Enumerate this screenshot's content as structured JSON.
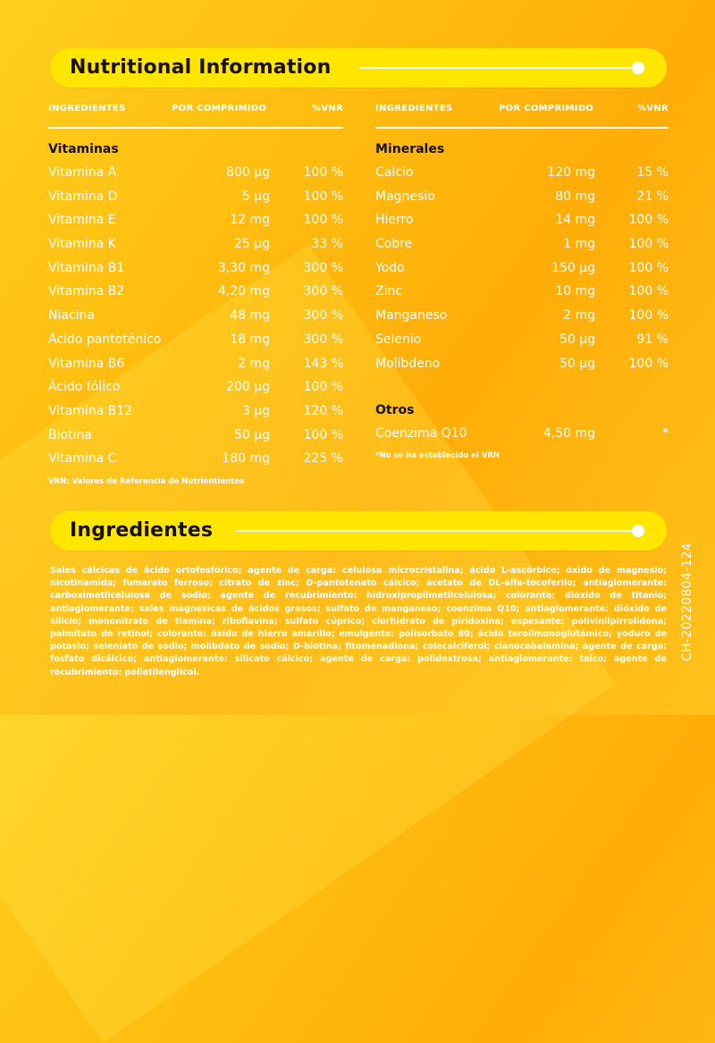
{
  "nutrition": {
    "title": "Nutritional Information",
    "columns": {
      "ingredient": "INGREDIENTES",
      "per_tablet": "POR COMPRIMIDO",
      "vnr": "%VNR"
    },
    "vitamins": {
      "label": "Vitaminas",
      "rows": [
        {
          "name": "Vitamina A",
          "amount": "800 µg",
          "vnr": "100 %"
        },
        {
          "name": "Vitamina D",
          "amount": "5 µg",
          "vnr": "100 %"
        },
        {
          "name": "Vitamina E",
          "amount": "12 mg",
          "vnr": "100 %"
        },
        {
          "name": "Vitamina K",
          "amount": "25 µg",
          "vnr": "33 %"
        },
        {
          "name": "Vitamina B1",
          "amount": "3,30 mg",
          "vnr": "300 %"
        },
        {
          "name": "Vitamina B2",
          "amount": "4,20 mg",
          "vnr": "300 %"
        },
        {
          "name": "Niacina",
          "amount": "48 mg",
          "vnr": "300 %"
        },
        {
          "name": "Ácido pantoténico",
          "amount": "18 mg",
          "vnr": "300 %"
        },
        {
          "name": "Vitamina B6",
          "amount": "2 mg",
          "vnr": "143 %"
        },
        {
          "name": "Ácido fólico",
          "amount": "200 µg",
          "vnr": "100 %"
        },
        {
          "name": "Vitamina B12",
          "amount": "3 µg",
          "vnr": "120 %"
        },
        {
          "name": "Biotina",
          "amount": "50 µg",
          "vnr": "100 %"
        },
        {
          "name": "Vitamina C",
          "amount": "180 mg",
          "vnr": "225 %"
        }
      ]
    },
    "minerals": {
      "label": "Minerales",
      "rows": [
        {
          "name": "Calcio",
          "amount": "120 mg",
          "vnr": "15 %"
        },
        {
          "name": "Magnesio",
          "amount": "80 mg",
          "vnr": "21 %"
        },
        {
          "name": "Hierro",
          "amount": "14 mg",
          "vnr": "100 %"
        },
        {
          "name": "Cobre",
          "amount": "1 mg",
          "vnr": "100 %"
        },
        {
          "name": "Yodo",
          "amount": "150 µg",
          "vnr": "100 %"
        },
        {
          "name": "Zinc",
          "amount": "10 mg",
          "vnr": "100 %"
        },
        {
          "name": "Manganeso",
          "amount": "2 mg",
          "vnr": "100 %"
        },
        {
          "name": "Selenio",
          "amount": "50 µg",
          "vnr": "91 %"
        },
        {
          "name": "Molibdeno",
          "amount": "50 µg",
          "vnr": "100 %"
        }
      ]
    },
    "others": {
      "label": "Otros",
      "rows": [
        {
          "name": "Coenzima Q10",
          "amount": "4,50 mg",
          "vnr": "*"
        }
      ]
    },
    "vrn_note": "VRN: Valores de Referencia de Nutrientientes",
    "asterisk_note": "*No se ha establecido el VRN"
  },
  "ingredients": {
    "title": "Ingredientes",
    "text": "Sales cálcicas de ácido ortofosfórico; agente de carga: celulosa microcristalina; ácido L-ascórbico; óxido de magnesio; nicotinamida; fumarato ferroso; citrato de zinc; D-pantotenato cálcico; acetato de DL-alfa-tocoferilo; antiaglomerante: carboximetilcelulosa de sodio; agente de recubrimiento: hidroxipropilmetilcelulosa; colorante: dióxido de titanio; antiaglomerante: sales magnésicas de ácidos grasos; sulfato de manganeso; coenzima Q10; antiaglomerante: dióxido de silicio; mononitrato de tiamina; riboflavina; sulfato cúprico; clorhidrato de piridoxina; espesante: polivinilpirrolidona; palmitato de retinol; colorante: óxido de hierro amarillo; emulgente: polisorbato 80; ácido teroilmonoglutámico; yoduro de potasio; seleniato de sodio; molibdato de sodio; D-biotina; fitomenadiona; colecalciferol; cianocobalamina; agente de carga: fosfato dicálcico; antiaglomerante: silicato cálcico; agente de carga: polidextrosa; antiaglomerante: talco; agente de recubrimiento: polietilenglicol."
  },
  "side_code": "CH-20220804-124",
  "colors": {
    "banner": "#ffe600",
    "background": "#ffbe10",
    "title_text": "#1a1200",
    "text": "#ffffff"
  }
}
